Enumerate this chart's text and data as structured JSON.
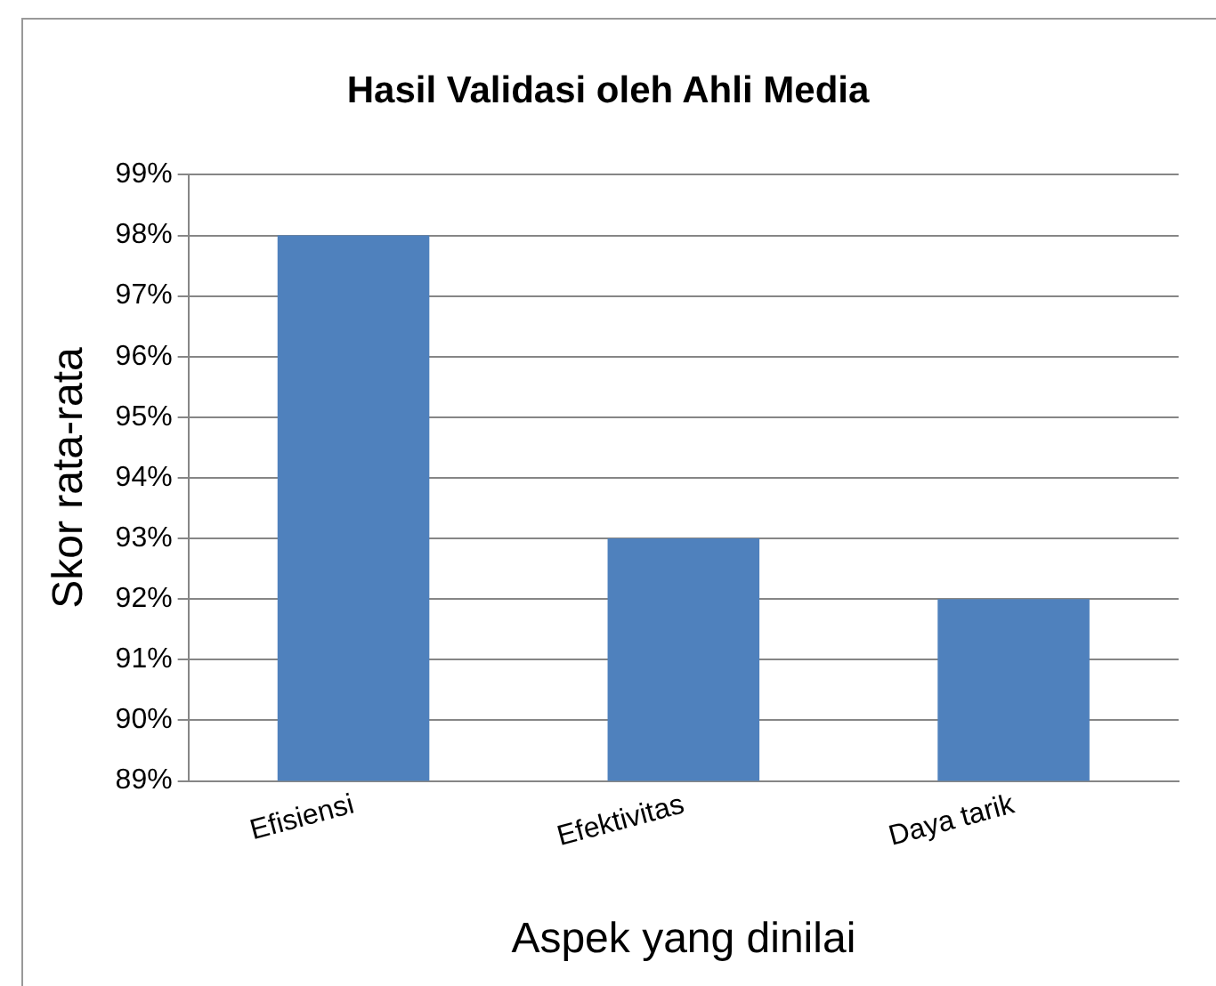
{
  "chart_data": {
    "type": "bar",
    "title": "Hasil Validasi oleh Ahli Media",
    "xlabel": "Aspek yang dinilai",
    "ylabel": "Skor rata-rata",
    "categories": [
      "Efisiensi",
      "Efektivitas",
      "Daya tarik"
    ],
    "values": [
      98,
      93,
      92
    ],
    "color": "#4f81bd",
    "ylim": [
      89,
      99
    ],
    "yticks": [
      {
        "value": 89,
        "label": "89%"
      },
      {
        "value": 90,
        "label": "90%"
      },
      {
        "value": 91,
        "label": "91%"
      },
      {
        "value": 92,
        "label": "92%"
      },
      {
        "value": 93,
        "label": "93%"
      },
      {
        "value": 94,
        "label": "94%"
      },
      {
        "value": 95,
        "label": "95%"
      },
      {
        "value": 96,
        "label": "96%"
      },
      {
        "value": 97,
        "label": "97%"
      },
      {
        "value": 98,
        "label": "98%"
      },
      {
        "value": 99,
        "label": "99%"
      }
    ],
    "grid": "y",
    "legend": false
  }
}
